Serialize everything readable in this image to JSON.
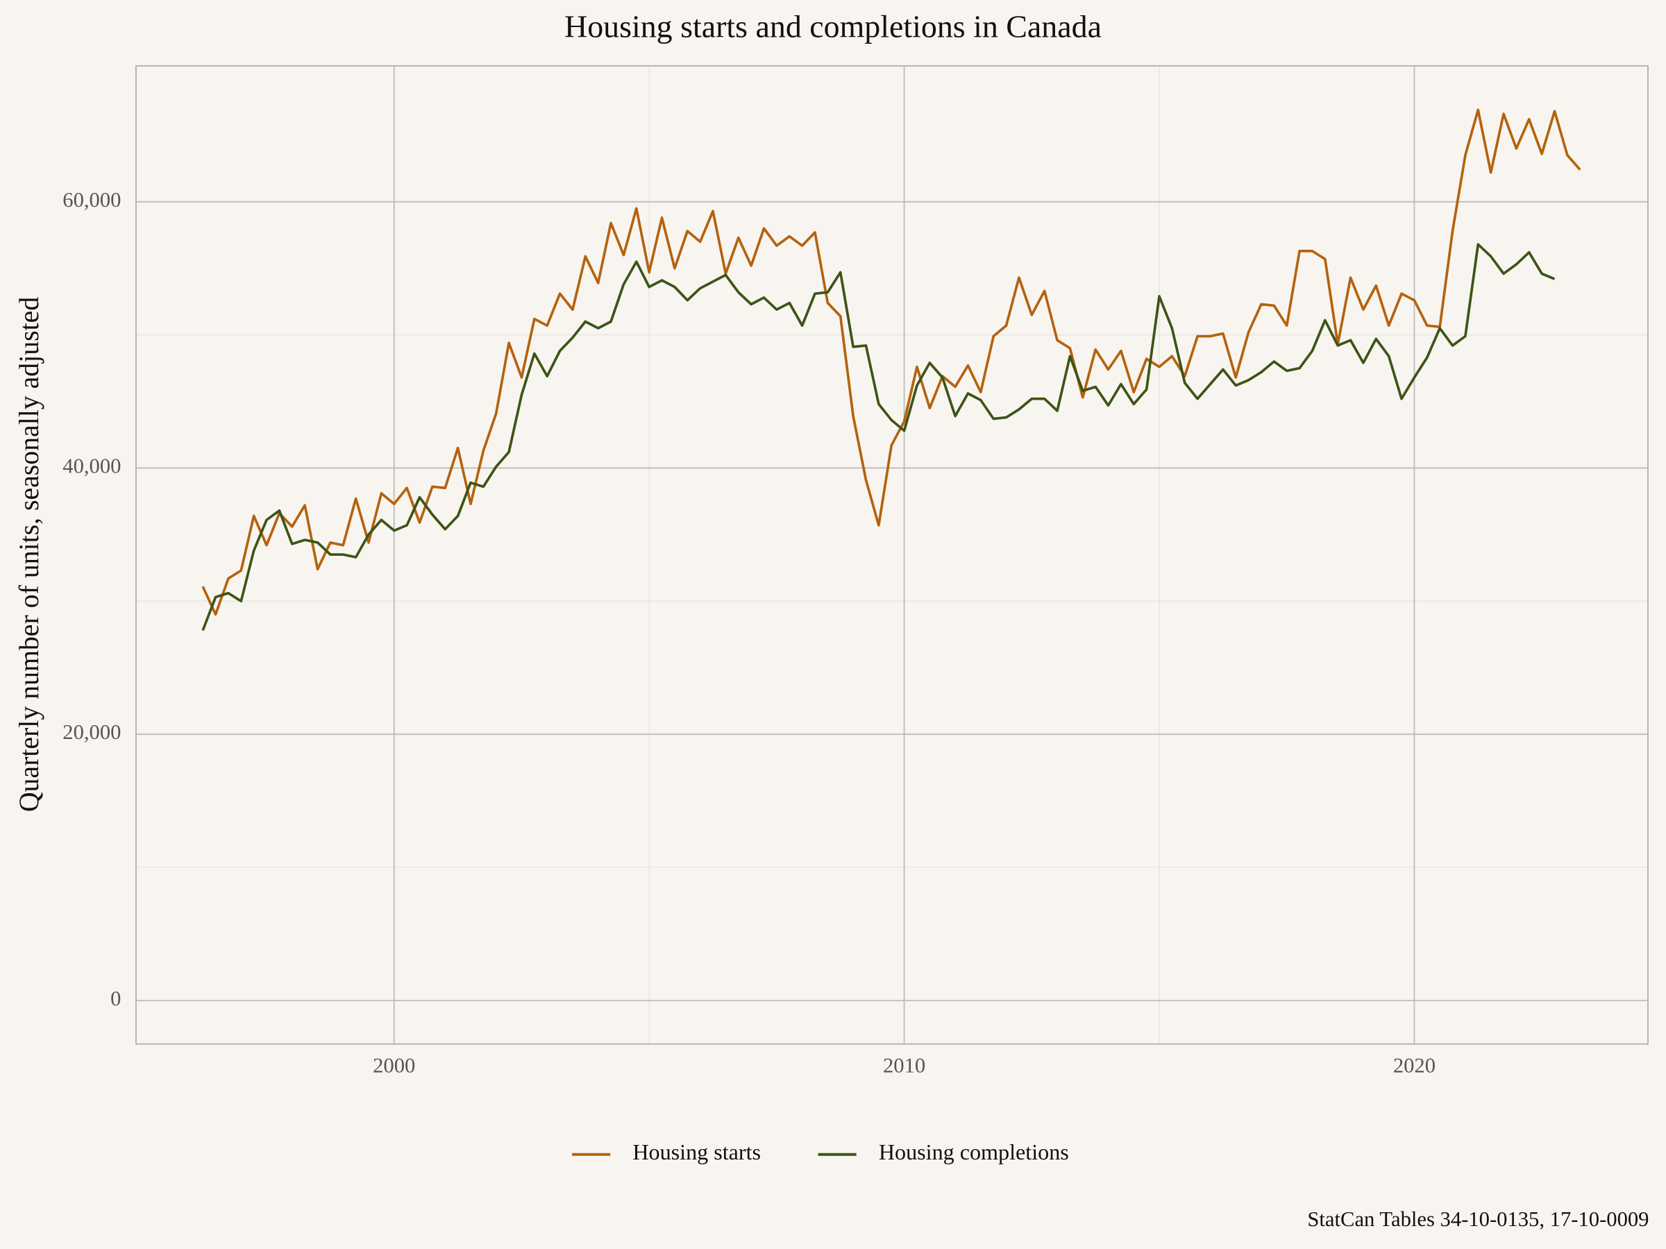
{
  "chart_data": {
    "type": "line",
    "title": "Housing starts and completions in Canada",
    "y_label": "Quarterly number of units, seasonally adjusted",
    "caption": "StatCan Tables 34-10-0135, 17-10-0009",
    "x": [
      1996.25,
      1996.5,
      1996.75,
      1997,
      1997.25,
      1997.5,
      1997.75,
      1998,
      1998.25,
      1998.5,
      1998.75,
      1999,
      1999.25,
      1999.5,
      1999.75,
      2000,
      2000.25,
      2000.5,
      2000.75,
      2001,
      2001.25,
      2001.5,
      2001.75,
      2002,
      2002.25,
      2002.5,
      2002.75,
      2003,
      2003.25,
      2003.5,
      2003.75,
      2004,
      2004.25,
      2004.5,
      2004.75,
      2005,
      2005.25,
      2005.5,
      2005.75,
      2006,
      2006.25,
      2006.5,
      2006.75,
      2007,
      2007.25,
      2007.5,
      2007.75,
      2008,
      2008.25,
      2008.5,
      2008.75,
      2009,
      2009.25,
      2009.5,
      2009.75,
      2010,
      2010.25,
      2010.5,
      2010.75,
      2011,
      2011.25,
      2011.5,
      2011.75,
      2012,
      2012.25,
      2012.5,
      2012.75,
      2013,
      2013.25,
      2013.5,
      2013.75,
      2014,
      2014.25,
      2014.5,
      2014.75,
      2015,
      2015.25,
      2015.5,
      2015.75,
      2016,
      2016.25,
      2016.5,
      2016.75,
      2017,
      2017.25,
      2017.5,
      2017.75,
      2018,
      2018.25,
      2018.5,
      2018.75,
      2019,
      2019.25,
      2019.5,
      2019.75,
      2020,
      2020.25,
      2020.5,
      2020.75,
      2021,
      2021.25,
      2021.5,
      2021.75,
      2022,
      2022.25,
      2022.5,
      2022.75,
      2023,
      2023.25
    ],
    "series": [
      {
        "name": "Housing starts",
        "color": "#b5620e",
        "values": [
          31100,
          29000,
          31700,
          32300,
          36400,
          34200,
          36600,
          35600,
          37200,
          32400,
          34400,
          34200,
          37700,
          34400,
          38100,
          37300,
          38500,
          35900,
          38600,
          38500,
          41500,
          37300,
          41300,
          44100,
          49400,
          46800,
          51200,
          50700,
          53100,
          51900,
          55900,
          53900,
          58400,
          56000,
          59500,
          54700,
          58800,
          55000,
          57800,
          57000,
          59300,
          54600,
          57300,
          55200,
          58000,
          56700,
          57400,
          56700,
          57700,
          52400,
          51400,
          43900,
          39100,
          35700,
          41700,
          43500,
          47600,
          44500,
          46900,
          46100,
          47700,
          45700,
          49900,
          50700,
          54300,
          51500,
          53300,
          49600,
          49000,
          45300,
          48900,
          47400,
          48800,
          45700,
          48200,
          47600,
          48400,
          46900,
          49900,
          49900,
          50100,
          46800,
          50200,
          52300,
          52200,
          50700,
          56300,
          56300,
          55700,
          49300,
          54300,
          51900,
          53700,
          50700,
          53100,
          52600,
          50700,
          50600,
          57800,
          63500,
          66900,
          62200,
          66600,
          64000,
          66200,
          63600,
          66800,
          63500,
          62400
        ]
      },
      {
        "name": "Housing completions",
        "color": "#3d5416",
        "values": [
          27800,
          30300,
          30600,
          30000,
          33800,
          36100,
          36800,
          34300,
          34600,
          34400,
          33500,
          33500,
          33300,
          35000,
          36100,
          35300,
          35700,
          37800,
          36500,
          35400,
          36400,
          38900,
          38600,
          40100,
          41200,
          45500,
          48600,
          46900,
          48800,
          49800,
          51000,
          50500,
          51000,
          53800,
          55500,
          53600,
          54100,
          53600,
          52600,
          53500,
          54000,
          54500,
          53200,
          52300,
          52800,
          51900,
          52400,
          50700,
          53100,
          53200,
          54700,
          49100,
          49200,
          44800,
          43600,
          42800,
          46200,
          47900,
          46800,
          43900,
          45600,
          45100,
          43700,
          43800,
          44400,
          45200,
          45200,
          44300,
          48400,
          45800,
          46100,
          44700,
          46300,
          44800,
          45900,
          52900,
          50500,
          46400,
          45200,
          46300,
          47400,
          46200,
          46600,
          47200,
          48000,
          47300,
          47500,
          48800,
          51100,
          49200,
          49600,
          47900,
          49700,
          48400,
          45200,
          46800,
          48300,
          50500,
          49200,
          49900,
          56800,
          55900,
          54600,
          55300,
          56200,
          54600,
          54200,
          null,
          null
        ]
      }
    ],
    "xlim": [
      1994.94,
      2024.58
    ],
    "xticks": [
      2000,
      2010,
      2020
    ],
    "x_minor_ticks": [
      2005,
      2015
    ],
    "ylim": [
      -3270,
      70210
    ],
    "yticks": [
      {
        "value": 0,
        "label": "0"
      },
      {
        "value": 20000,
        "label": "20,000"
      },
      {
        "value": 40000,
        "label": "40,000"
      },
      {
        "value": 60000,
        "label": "60,000"
      }
    ],
    "y_minor_ticks": [
      10000,
      30000,
      50000
    ],
    "grid": true,
    "legend": "bottom"
  }
}
